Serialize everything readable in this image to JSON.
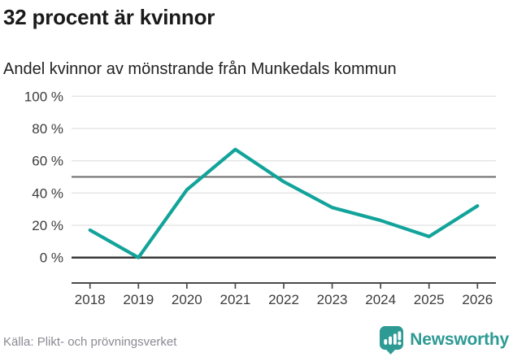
{
  "header": {
    "title": "32 procent är kvinnor",
    "subtitle": "Andel kvinnor av mönstrande från Munkedals kommun"
  },
  "chart_data": {
    "type": "line",
    "title": "32 procent är kvinnor",
    "subtitle": "Andel kvinnor av mönstrande från Munkedals kommun",
    "categories": [
      "2018",
      "2019",
      "2020",
      "2021",
      "2022",
      "2023",
      "2024",
      "2025",
      "2026"
    ],
    "series": [
      {
        "name": "Andel kvinnor av mönstrande",
        "values": [
          17,
          0,
          42,
          67,
          47,
          31,
          23,
          13,
          32
        ]
      }
    ],
    "unit": "%",
    "ylim": [
      0,
      100
    ],
    "y_ticks": [
      0,
      20,
      40,
      60,
      80,
      100
    ],
    "y_tick_format": "{v} %",
    "reference_line_y": 50,
    "grid": true,
    "legend": false
  },
  "footer": {
    "source": "Källa: Plikt- och prövningsverket",
    "brand_name": "Newsworthy"
  },
  "colors": {
    "line": "#12a39a",
    "grid_light": "#e4e4e4",
    "reference_line": "#6a6a6a",
    "zero_line": "#3a3a3a",
    "axis": "#4a4a4a",
    "tick_text": "#3c3c3c",
    "source_text": "#8a8a93",
    "brand": "#2e9a94"
  }
}
